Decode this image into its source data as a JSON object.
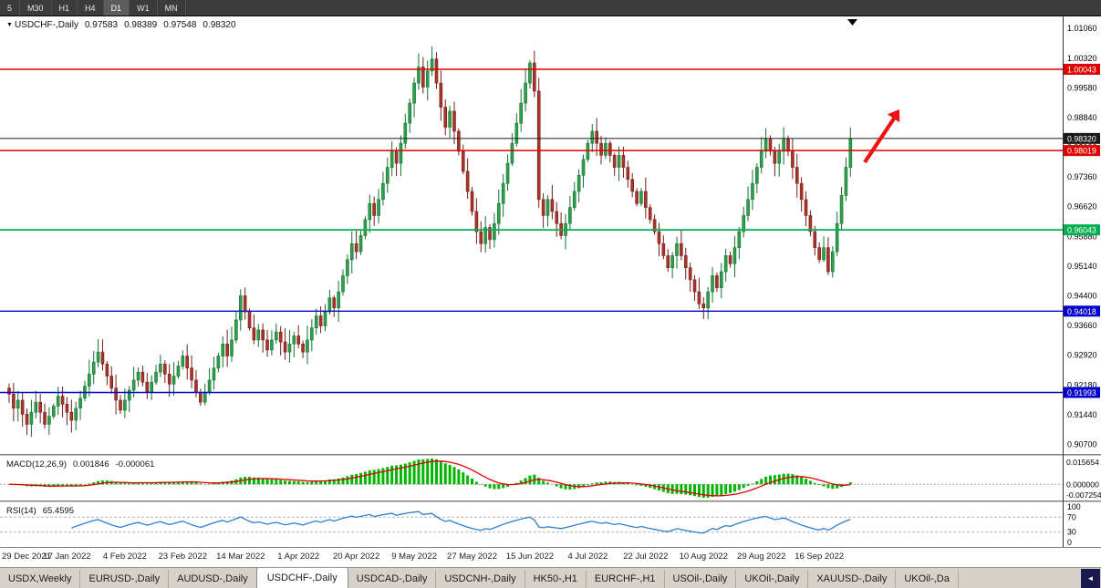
{
  "colors": {
    "bull": "#2ea04c",
    "bull_dark": "#177032",
    "bear": "#a8352a",
    "bear_dark": "#741f18",
    "macd_hist": "#00b400",
    "macd_signal": "#e00000",
    "rsi_line": "#2e7fd0",
    "arrow": "#ee1111",
    "level_red": "#e00000",
    "level_green": "#00b050",
    "level_blue": "#0000cc",
    "level_black": "#1a1a1a"
  },
  "icons": {
    "scroll_left": "◄",
    "symbol_marker": "▼",
    "shift_marker": "▼"
  },
  "toolbar": {
    "timeframes": [
      "5",
      "M30",
      "H1",
      "H4",
      "D1",
      "W1",
      "MN"
    ],
    "active": "D1"
  },
  "chart_header": {
    "symbol": "USDCHF-,Daily",
    "open": "0.97583",
    "high": "0.98389",
    "low": "0.97548",
    "close": "0.98320"
  },
  "price_axis": {
    "ticks": [
      "1.01060",
      "1.00320",
      "0.99580",
      "0.98840",
      "0.98100",
      "0.97360",
      "0.96620",
      "0.95880",
      "0.95140",
      "0.94400",
      "0.93660",
      "0.92920",
      "0.92180",
      "0.91440",
      "0.90700"
    ]
  },
  "levels": [
    {
      "price": 1.00043,
      "label": "1.00043",
      "color": "#e00000",
      "width": 1.4
    },
    {
      "price": 0.9832,
      "label": "0.98320",
      "color": "#1a1a1a",
      "width": 1.0
    },
    {
      "price": 0.98019,
      "label": "0.98019",
      "color": "#e00000",
      "width": 1.4
    },
    {
      "price": 0.96043,
      "label": "0.96043",
      "color": "#00b050",
      "width": 1.8
    },
    {
      "price": 0.94018,
      "label": "0.94018",
      "color": "#0000cc",
      "width": 1.4
    },
    {
      "price": 0.91993,
      "label": "0.91993",
      "color": "#0000cc",
      "width": 1.4
    }
  ],
  "macd": {
    "label": "MACD(12,26,9)",
    "value": "0.001846",
    "signal_value": "-0.000061",
    "fast": 12,
    "slow": 26,
    "signal": 9,
    "axis": {
      "top": "0.015654",
      "zero": "0.000000",
      "bottom": "-0.007254"
    }
  },
  "rsi": {
    "label": "RSI(14)",
    "value": "65.4595",
    "period": 14,
    "levels": [
      70,
      30
    ],
    "axis": [
      "100",
      "70",
      "30",
      "0"
    ]
  },
  "chart_data": {
    "type": "candlestick",
    "symbol": "USDCHF",
    "timeframe": "Daily",
    "price_min": 0.9046,
    "price_max": 1.0136,
    "first_open": 0.921,
    "closes": [
      0.9195,
      0.916,
      0.918,
      0.9145,
      0.912,
      0.915,
      0.9175,
      0.915,
      0.912,
      0.914,
      0.9165,
      0.919,
      0.917,
      0.915,
      0.913,
      0.916,
      0.9185,
      0.9215,
      0.9245,
      0.9275,
      0.93,
      0.927,
      0.924,
      0.921,
      0.918,
      0.9155,
      0.918,
      0.9205,
      0.923,
      0.925,
      0.9225,
      0.92,
      0.9225,
      0.925,
      0.927,
      0.9245,
      0.922,
      0.924,
      0.9265,
      0.929,
      0.926,
      0.923,
      0.92,
      0.9175,
      0.92,
      0.923,
      0.926,
      0.929,
      0.932,
      0.929,
      0.933,
      0.938,
      0.944,
      0.94,
      0.936,
      0.933,
      0.9355,
      0.933,
      0.9305,
      0.933,
      0.935,
      0.9325,
      0.93,
      0.932,
      0.934,
      0.932,
      0.93,
      0.933,
      0.936,
      0.939,
      0.9365,
      0.94,
      0.9435,
      0.941,
      0.945,
      0.949,
      0.953,
      0.957,
      0.955,
      0.959,
      0.963,
      0.967,
      0.964,
      0.968,
      0.972,
      0.976,
      0.98,
      0.977,
      0.982,
      0.987,
      0.992,
      0.997,
      1.001,
      0.996,
      1.0,
      1.003,
      0.997,
      0.991,
      0.986,
      0.99,
      0.985,
      0.98,
      0.975,
      0.97,
      0.965,
      0.96,
      0.957,
      0.961,
      0.958,
      0.962,
      0.967,
      0.972,
      0.977,
      0.982,
      0.987,
      0.992,
      0.997,
      1.002,
      0.995,
      0.968,
      0.964,
      0.968,
      0.965,
      0.962,
      0.959,
      0.962,
      0.966,
      0.97,
      0.974,
      0.978,
      0.982,
      0.985,
      0.982,
      0.979,
      0.982,
      0.979,
      0.976,
      0.979,
      0.976,
      0.973,
      0.97,
      0.967,
      0.97,
      0.966,
      0.963,
      0.96,
      0.957,
      0.954,
      0.951,
      0.954,
      0.957,
      0.954,
      0.951,
      0.948,
      0.945,
      0.942,
      0.941,
      0.945,
      0.949,
      0.946,
      0.95,
      0.954,
      0.952,
      0.956,
      0.96,
      0.964,
      0.968,
      0.972,
      0.976,
      0.98,
      0.983,
      0.98,
      0.977,
      0.98,
      0.983,
      0.98,
      0.976,
      0.972,
      0.968,
      0.964,
      0.96,
      0.956,
      0.953,
      0.956,
      0.95,
      0.955,
      0.962,
      0.969,
      0.976,
      0.9832
    ],
    "x_labels": [
      {
        "i": 0,
        "text": "29 Dec 2021"
      },
      {
        "i": 13,
        "text": "17 Jan 2022"
      },
      {
        "i": 26,
        "text": "4 Feb 2022"
      },
      {
        "i": 39,
        "text": "23 Feb 2022"
      },
      {
        "i": 52,
        "text": "14 Mar 2022"
      },
      {
        "i": 65,
        "text": "1 Apr 2022"
      },
      {
        "i": 78,
        "text": "20 Apr 2022"
      },
      {
        "i": 91,
        "text": "9 May 2022"
      },
      {
        "i": 104,
        "text": "27 May 2022"
      },
      {
        "i": 117,
        "text": "15 Jun 2022"
      },
      {
        "i": 130,
        "text": "4 Jul 2022"
      },
      {
        "i": 143,
        "text": "22 Jul 2022"
      },
      {
        "i": 156,
        "text": "10 Aug 2022"
      },
      {
        "i": 169,
        "text": "29 Aug 2022"
      },
      {
        "i": 182,
        "text": "16 Sep 2022"
      }
    ]
  },
  "tabs": [
    {
      "label": "USDX,Weekly",
      "active": false
    },
    {
      "label": "EURUSD-,Daily",
      "active": false
    },
    {
      "label": "AUDUSD-,Daily",
      "active": false
    },
    {
      "label": "USDCHF-,Daily",
      "active": true
    },
    {
      "label": "USDCAD-,Daily",
      "active": false
    },
    {
      "label": "USDCNH-,Daily",
      "active": false
    },
    {
      "label": "HK50-,H1",
      "active": false
    },
    {
      "label": "EURCHF-,H1",
      "active": false
    },
    {
      "label": "USOil-,Daily",
      "active": false
    },
    {
      "label": "UKOil-,Daily",
      "active": false
    },
    {
      "label": "XAUUSD-,Daily",
      "active": false
    },
    {
      "label": "UKOil-,Da",
      "active": false
    }
  ]
}
